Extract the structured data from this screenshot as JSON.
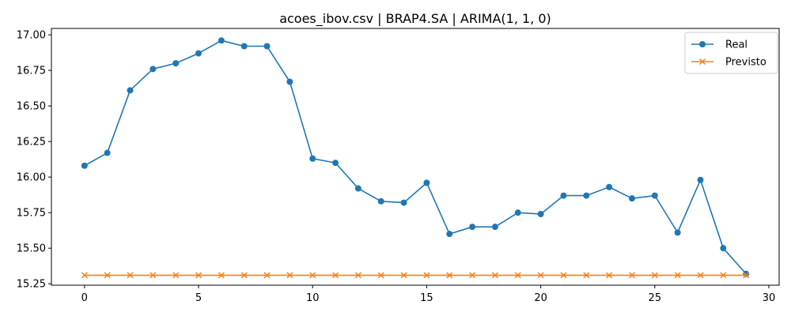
{
  "chart_data": {
    "type": "line",
    "title": "acoes_ibov.csv | BRAP4.SA | ARIMA(1, 1, 0)",
    "xlabel": "",
    "ylabel": "",
    "xlim": [
      -1.45,
      30.45
    ],
    "ylim": [
      15.24,
      17.045
    ],
    "x_ticks": [
      0,
      5,
      10,
      15,
      20,
      25,
      30
    ],
    "y_ticks": [
      15.25,
      15.5,
      15.75,
      16.0,
      16.25,
      16.5,
      16.75,
      17.0
    ],
    "y_tick_labels": [
      "15.25",
      "15.50",
      "15.75",
      "16.00",
      "16.25",
      "16.50",
      "16.75",
      "17.00"
    ],
    "x": [
      0,
      1,
      2,
      3,
      4,
      5,
      6,
      7,
      8,
      9,
      10,
      11,
      12,
      13,
      14,
      15,
      16,
      17,
      18,
      19,
      20,
      21,
      22,
      23,
      24,
      25,
      26,
      27,
      28,
      29
    ],
    "series": [
      {
        "name": "Real",
        "color": "#1f77b4",
        "marker": "circle",
        "values": [
          16.08,
          16.17,
          16.61,
          16.76,
          16.8,
          16.87,
          16.96,
          16.92,
          16.92,
          16.67,
          16.13,
          16.1,
          15.92,
          15.83,
          15.82,
          15.96,
          15.6,
          15.65,
          15.65,
          15.75,
          15.74,
          15.87,
          15.87,
          15.93,
          15.85,
          15.87,
          15.61,
          15.98,
          15.5,
          15.32
        ]
      },
      {
        "name": "Previsto",
        "color": "#ff7f0e",
        "marker": "x",
        "values": [
          15.31,
          15.31,
          15.31,
          15.31,
          15.31,
          15.31,
          15.31,
          15.31,
          15.31,
          15.31,
          15.31,
          15.31,
          15.31,
          15.31,
          15.31,
          15.31,
          15.31,
          15.31,
          15.31,
          15.31,
          15.31,
          15.31,
          15.31,
          15.31,
          15.31,
          15.31,
          15.31,
          15.31,
          15.31,
          15.31
        ]
      }
    ],
    "grid": false,
    "legend_position": "top-right"
  }
}
